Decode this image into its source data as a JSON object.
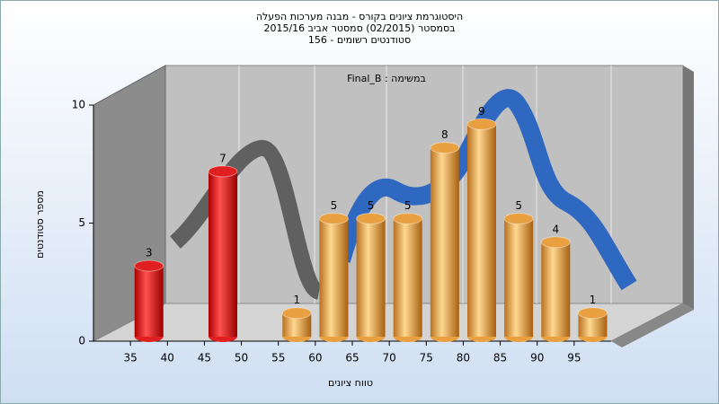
{
  "chart_data": {
    "type": "histogram3d",
    "title": [
      "היסטוגרמת ציונים בקורס - מבנה מערכות הפעלה",
      "בסמסטר (02/2015) סמסטר אביב 2015/16",
      "סטודנטים רשומים - 156"
    ],
    "subtitle": "במשימה : Final_B",
    "x_label": "טווח ציונים",
    "y_label": "מספר סטודנטים",
    "x": [
      37.5,
      47.5,
      57.5,
      62.5,
      67.5,
      72.5,
      77.5,
      82.5,
      87.5,
      92.5,
      97.5
    ],
    "values": [
      3,
      7,
      1,
      5,
      5,
      5,
      8,
      9,
      5,
      4,
      1
    ],
    "colors": [
      "#e02020",
      "#e02020",
      "#e8a040",
      "#e8a040",
      "#e8a040",
      "#e8a040",
      "#e8a040",
      "#e8a040",
      "#e8a040",
      "#e8a040",
      "#e8a040"
    ],
    "xlim": [
      30,
      100
    ],
    "xticks": [
      35,
      40,
      45,
      50,
      55,
      60,
      65,
      70,
      75,
      80,
      85,
      90,
      95
    ],
    "ylim": [
      0,
      10
    ],
    "yticks": [
      0,
      5,
      10
    ]
  }
}
